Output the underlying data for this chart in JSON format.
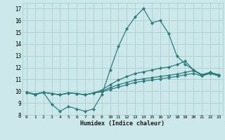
{
  "xlabel": "Humidex (Indice chaleur)",
  "xlim": [
    -0.5,
    23.5
  ],
  "ylim": [
    8,
    17.5
  ],
  "yticks": [
    8,
    9,
    10,
    11,
    12,
    13,
    14,
    15,
    16,
    17
  ],
  "xticks": [
    0,
    1,
    2,
    3,
    4,
    5,
    6,
    7,
    8,
    9,
    10,
    11,
    12,
    13,
    14,
    15,
    16,
    17,
    18,
    19,
    20,
    21,
    22,
    23
  ],
  "background_color": "#cce8ea",
  "grid_color": "#aacfd2",
  "line_color": "#2d7d7d",
  "line_width": 0.9,
  "marker": "D",
  "marker_size": 2.2,
  "series": {
    "line1": [
      9.9,
      9.7,
      9.9,
      8.9,
      8.3,
      8.7,
      8.5,
      8.3,
      8.5,
      9.7,
      11.8,
      13.8,
      15.3,
      16.3,
      17.0,
      15.8,
      16.0,
      14.9,
      13.0,
      12.3,
      11.8,
      11.4,
      11.6,
      11.4
    ],
    "line2": [
      9.9,
      9.75,
      9.9,
      9.8,
      9.7,
      9.85,
      9.8,
      9.7,
      9.85,
      10.1,
      10.55,
      10.95,
      11.25,
      11.5,
      11.65,
      11.8,
      11.95,
      12.05,
      12.25,
      12.55,
      11.8,
      11.4,
      11.6,
      11.4
    ],
    "line3": [
      9.9,
      9.75,
      9.9,
      9.8,
      9.7,
      9.85,
      9.8,
      9.7,
      9.85,
      10.0,
      10.3,
      10.55,
      10.75,
      10.95,
      11.05,
      11.15,
      11.25,
      11.35,
      11.45,
      11.6,
      11.75,
      11.35,
      11.55,
      11.35
    ],
    "line4": [
      9.9,
      9.75,
      9.9,
      9.8,
      9.7,
      9.85,
      9.8,
      9.7,
      9.85,
      9.95,
      10.15,
      10.35,
      10.55,
      10.75,
      10.85,
      10.95,
      11.05,
      11.15,
      11.25,
      11.4,
      11.5,
      11.3,
      11.5,
      11.3
    ]
  }
}
